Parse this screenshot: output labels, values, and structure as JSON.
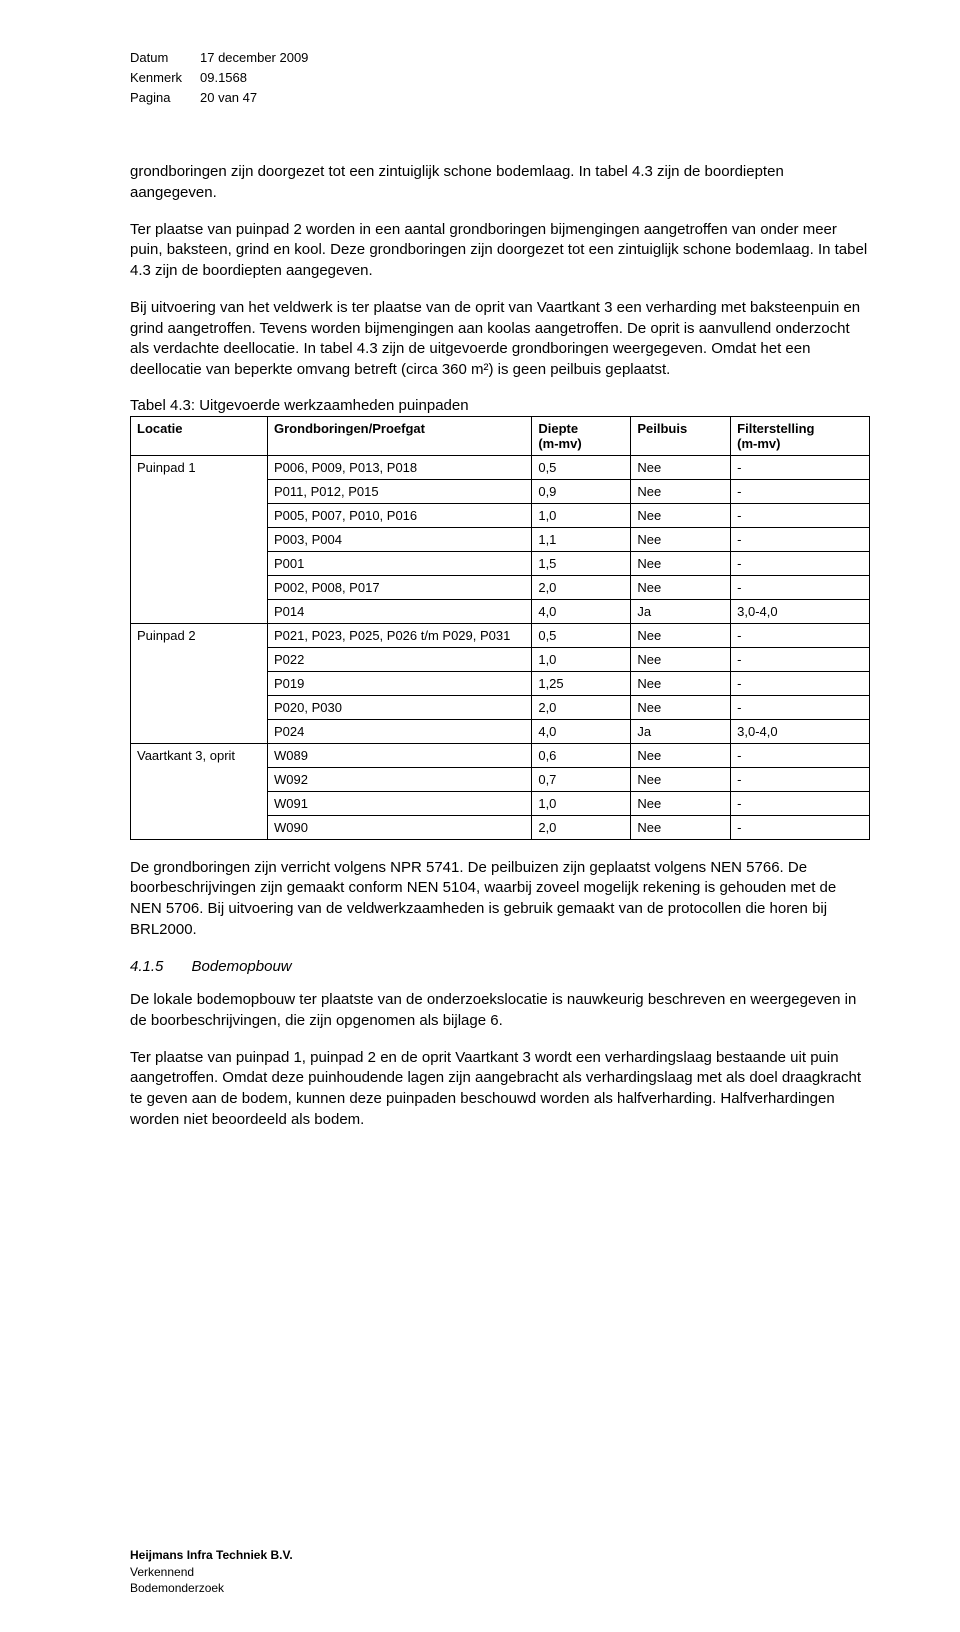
{
  "meta": {
    "datum_label": "Datum",
    "datum_value": "17 december 2009",
    "kenmerk_label": "Kenmerk",
    "kenmerk_value": "09.1568",
    "pagina_label": "Pagina",
    "pagina_value": "20 van 47"
  },
  "paragraphs": {
    "p1": "grondboringen zijn doorgezet tot een zintuiglijk schone bodemlaag. In tabel 4.3 zijn de boordiepten aangegeven.",
    "p2": "Ter plaatse van puinpad 2 worden in een aantal grondboringen bijmengingen aangetroffen van onder meer puin, baksteen, grind en kool. Deze grondboringen zijn doorgezet tot een zintuiglijk schone bodemlaag. In tabel 4.3 zijn de boordiepten aangegeven.",
    "p3": "Bij uitvoering van het veldwerk is ter plaatse van de oprit van Vaartkant 3 een verharding met baksteenpuin en grind aangetroffen. Tevens worden bijmengingen aan koolas aangetroffen. De oprit is aanvullend onderzocht als verdachte deellocatie. In tabel 4.3 zijn de uitgevoerde grondboringen weergegeven. Omdat het een deellocatie van beperkte omvang betreft (circa 360 m²) is geen peilbuis geplaatst.",
    "p4": "De grondboringen zijn verricht volgens NPR 5741. De peilbuizen zijn geplaatst volgens NEN 5766. De boorbeschrijvingen zijn gemaakt conform NEN 5104, waarbij zoveel mogelijk rekening is gehouden met de NEN 5706. Bij uitvoering van de veldwerkzaamheden is gebruik gemaakt van de protocollen die horen bij BRL2000.",
    "p5": "De lokale bodemopbouw ter plaatste van de onderzoekslocatie is nauwkeurig beschreven en weergegeven in de boorbeschrijvingen, die zijn opgenomen als bijlage 6.",
    "p6": "Ter plaatse van puinpad 1, puinpad 2 en de oprit Vaartkant 3 wordt een verhardingslaag bestaande uit puin aangetroffen. Omdat deze puinhoudende lagen zijn aangebracht als verhardingslaag met als doel draagkracht te geven aan de bodem, kunnen deze puinpaden beschouwd worden als halfverharding. Halfverhardingen worden niet beoordeeld als bodem."
  },
  "table": {
    "caption": "Tabel 4.3: Uitgevoerde werkzaamheden puinpaden",
    "columns": {
      "locatie": "Locatie",
      "boringen": "Grondboringen/Proefgat",
      "diepte": "Diepte",
      "diepte_unit": "(m-mv)",
      "peilbuis": "Peilbuis",
      "filter": "Filterstelling",
      "filter_unit": "(m-mv)"
    },
    "groups": [
      {
        "locatie": "Puinpad 1",
        "rows": [
          {
            "boring": "P006, P009, P013, P018",
            "diepte": "0,5",
            "peilbuis": "Nee",
            "filter": "-"
          },
          {
            "boring": "P011, P012, P015",
            "diepte": "0,9",
            "peilbuis": "Nee",
            "filter": "-"
          },
          {
            "boring": "P005, P007, P010, P016",
            "diepte": "1,0",
            "peilbuis": "Nee",
            "filter": "-"
          },
          {
            "boring": "P003, P004",
            "diepte": "1,1",
            "peilbuis": "Nee",
            "filter": "-"
          },
          {
            "boring": "P001",
            "diepte": "1,5",
            "peilbuis": "Nee",
            "filter": "-"
          },
          {
            "boring": "P002, P008, P017",
            "diepte": "2,0",
            "peilbuis": "Nee",
            "filter": "-"
          },
          {
            "boring": "P014",
            "diepte": "4,0",
            "peilbuis": "Ja",
            "filter": "3,0-4,0"
          }
        ]
      },
      {
        "locatie": "Puinpad 2",
        "rows": [
          {
            "boring": "P021, P023, P025, P026 t/m P029, P031",
            "diepte": "0,5",
            "peilbuis": "Nee",
            "filter": "-"
          },
          {
            "boring": "P022",
            "diepte": "1,0",
            "peilbuis": "Nee",
            "filter": "-"
          },
          {
            "boring": "P019",
            "diepte": "1,25",
            "peilbuis": "Nee",
            "filter": "-"
          },
          {
            "boring": "P020, P030",
            "diepte": "2,0",
            "peilbuis": "Nee",
            "filter": "-"
          },
          {
            "boring": "P024",
            "diepte": "4,0",
            "peilbuis": "Ja",
            "filter": "3,0-4,0"
          }
        ]
      },
      {
        "locatie": "Vaartkant 3, oprit",
        "rows": [
          {
            "boring": "W089",
            "diepte": "0,6",
            "peilbuis": "Nee",
            "filter": "-"
          },
          {
            "boring": "W092",
            "diepte": "0,7",
            "peilbuis": "Nee",
            "filter": "-"
          },
          {
            "boring": "W091",
            "diepte": "1,0",
            "peilbuis": "Nee",
            "filter": "-"
          },
          {
            "boring": "W090",
            "diepte": "2,0",
            "peilbuis": "Nee",
            "filter": "-"
          }
        ]
      }
    ]
  },
  "section": {
    "number": "4.1.5",
    "title": "Bodemopbouw"
  },
  "footer": {
    "company": "Heijmans Infra Techniek B.V.",
    "line1": "Verkennend",
    "line2": "Bodemonderzoek"
  }
}
